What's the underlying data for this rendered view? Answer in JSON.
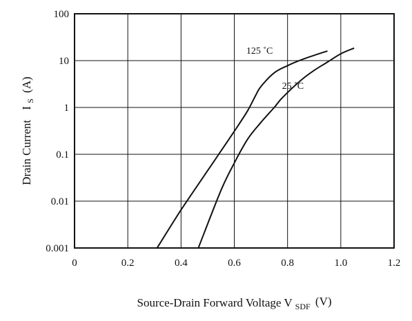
{
  "chart_data": {
    "type": "line",
    "title": "",
    "xlabel": {
      "text": "Source-Drain Forward Voltage V",
      "subscript": "SDF",
      "unit": "(V)"
    },
    "ylabel": {
      "text": "Drain Current",
      "symbol": "I",
      "subscript": "S",
      "unit": "(A)"
    },
    "xlim": [
      0,
      1.2
    ],
    "ylim": [
      0.001,
      100
    ],
    "yscale": "log",
    "grid": true,
    "x_ticks": [
      0,
      0.2,
      0.4,
      0.6,
      0.8,
      1.0,
      1.2
    ],
    "x_tick_labels": [
      "0",
      "0.2",
      "0.4",
      "0.6",
      "0.8",
      "1.0",
      "1.2"
    ],
    "y_ticks": [
      0.001,
      0.01,
      0.1,
      1,
      10,
      100
    ],
    "y_tick_labels": [
      "0.001",
      "0.01",
      "0.1",
      "1",
      "10",
      "100"
    ],
    "series": [
      {
        "name": "125 ˚C",
        "points": [
          [
            0.31,
            0.001
          ],
          [
            0.4,
            0.0065
          ],
          [
            0.5,
            0.045
          ],
          [
            0.6,
            0.31
          ],
          [
            0.65,
            0.85
          ],
          [
            0.68,
            1.8
          ],
          [
            0.7,
            2.8
          ],
          [
            0.75,
            5.5
          ],
          [
            0.8,
            7.8
          ],
          [
            0.85,
            10.3
          ],
          [
            0.9,
            13.0
          ],
          [
            0.95,
            16.0
          ]
        ]
      },
      {
        "name": "25 ˚C",
        "points": [
          [
            0.465,
            0.001
          ],
          [
            0.55,
            0.017
          ],
          [
            0.6,
            0.065
          ],
          [
            0.65,
            0.21
          ],
          [
            0.7,
            0.48
          ],
          [
            0.75,
            1.0
          ],
          [
            0.78,
            1.6
          ],
          [
            0.85,
            3.8
          ],
          [
            0.9,
            6.2
          ],
          [
            0.95,
            9.3
          ],
          [
            1.0,
            14.0
          ],
          [
            1.05,
            18.5
          ]
        ]
      }
    ],
    "annotations": [
      {
        "series": 0,
        "text": "125 ˚C",
        "x": 0.695,
        "y": 14
      },
      {
        "series": 1,
        "text": "25 ˚C",
        "x": 0.82,
        "y": 2.5
      }
    ]
  }
}
